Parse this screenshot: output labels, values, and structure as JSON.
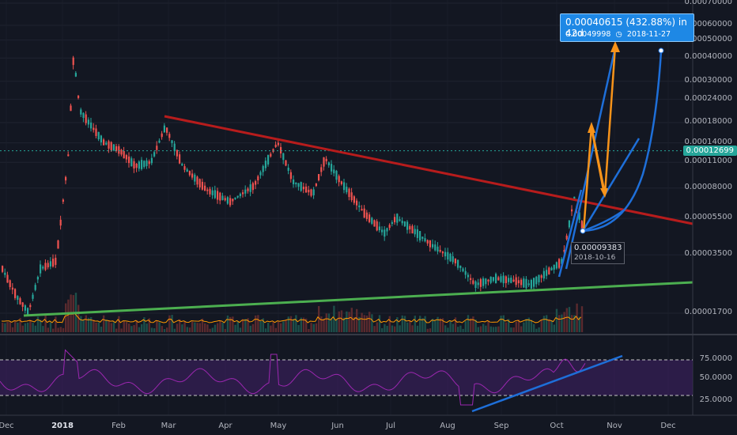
{
  "chart": {
    "price_axis_labels": [
      "0.00070000",
      "0.00060000",
      "0.00050000",
      "0.00040000",
      "0.00030000",
      "0.00024000",
      "0.00018000",
      "0.00014000",
      "0.00011000",
      "0.00008000",
      "0.00005500",
      "0.00003500",
      "0.00001700"
    ],
    "price_axis_values": [
      0.0007,
      0.0006,
      0.0005,
      0.0004,
      0.0003,
      0.00024,
      0.00018,
      0.00014,
      0.00011,
      8e-05,
      5.5e-05,
      3.5e-05,
      1.7e-05
    ],
    "current_price_label": "0.00012699",
    "current_price_value": 0.00012699,
    "time_axis_labels": [
      {
        "label": "Dec",
        "bold": false
      },
      {
        "label": "2018",
        "bold": true
      },
      {
        "label": "Feb",
        "bold": false
      },
      {
        "label": "Mar",
        "bold": false
      },
      {
        "label": "Apr",
        "bold": false
      },
      {
        "label": "May",
        "bold": false
      },
      {
        "label": "Jun",
        "bold": false
      },
      {
        "label": "Jul",
        "bold": false
      },
      {
        "label": "Aug",
        "bold": false
      },
      {
        "label": "Sep",
        "bold": false
      },
      {
        "label": "Oct",
        "bold": false
      },
      {
        "label": "Nov",
        "bold": false
      },
      {
        "label": "Dec",
        "bold": false
      }
    ],
    "rsi_axis_labels": [
      "75.0000",
      "50.0000",
      "25.0000"
    ],
    "rsi_axis_values": [
      75,
      50,
      25
    ]
  },
  "measure_callout": {
    "line1": "0.00040615 (432.88%) in 42d",
    "line2_price": "0.00049998",
    "line2_date": "2018-11-27"
  },
  "low_marker": {
    "value": "0.00009383",
    "date": "2018-10-16"
  },
  "colors": {
    "background": "#131722",
    "up_candle": "#26a69a",
    "down_candle": "#ef5350",
    "resistance_line": "#b71c1c",
    "support_line": "#4caf50",
    "projection_lines": "#1e6fd9",
    "path_arrows": "#f7931a",
    "rsi_line": "#9c27b0",
    "rsi_band": "#3a1f5e",
    "volume_ma": "#ff9800"
  }
}
